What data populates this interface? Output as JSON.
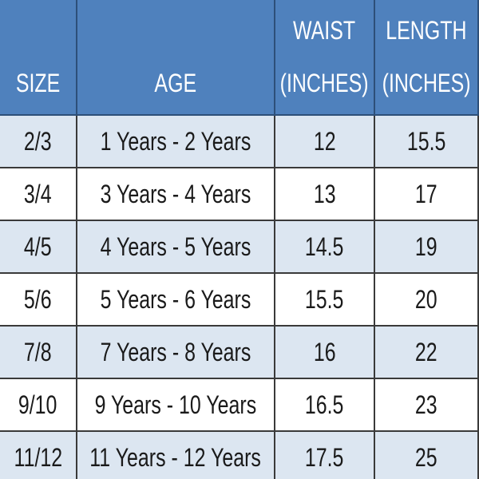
{
  "table": {
    "header": [
      [
        "SIZE"
      ],
      [
        "AGE"
      ],
      [
        "WAIST",
        "(INCHES)"
      ],
      [
        "LENGTH",
        "(INCHES)"
      ]
    ],
    "rows": [
      [
        "2/3",
        "1 Years - 2 Years",
        "12",
        "15.5"
      ],
      [
        "3/4",
        "3 Years - 4 Years",
        "13",
        "17"
      ],
      [
        "4/5",
        "4 Years - 5 Years",
        "14.5",
        "19"
      ],
      [
        "5/6",
        "5 Years - 6 Years",
        "15.5",
        "20"
      ],
      [
        "7/8",
        "7 Years - 8 Years",
        "16",
        "22"
      ],
      [
        "9/10",
        "9 Years - 10 Years",
        "16.5",
        "23"
      ],
      [
        "11/12",
        "11 Years - 12 Years",
        "17.5",
        "25"
      ]
    ]
  }
}
